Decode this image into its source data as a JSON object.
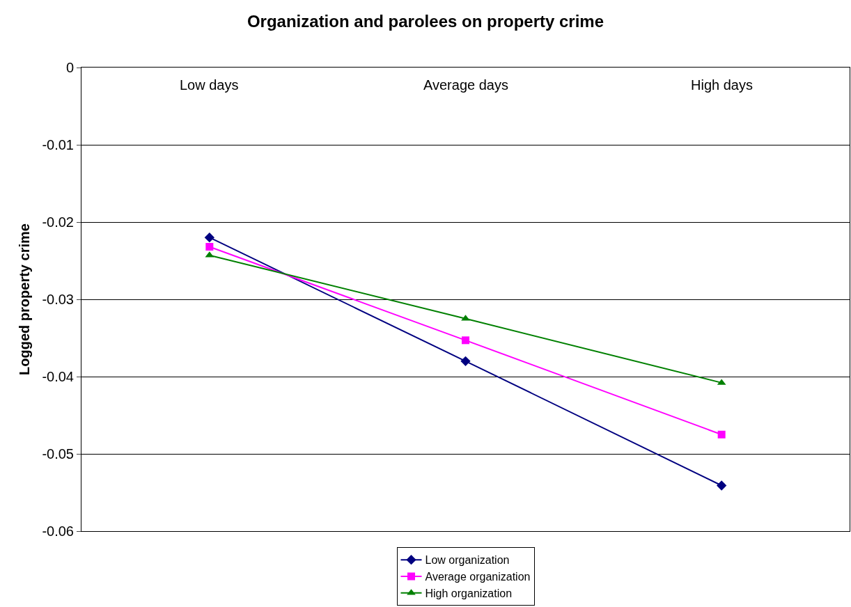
{
  "chart_data": {
    "type": "line",
    "title": "Organization and parolees on property crime",
    "ylabel": "Logged property crime",
    "categories": [
      "Low days",
      "Average days",
      "High days"
    ],
    "series": [
      {
        "name": "Low organization",
        "color": "#000080",
        "marker": "diamond",
        "values": [
          -0.022,
          -0.038,
          -0.0541
        ]
      },
      {
        "name": "Average organization",
        "color": "#ff00ff",
        "marker": "square",
        "values": [
          -0.0232,
          -0.0353,
          -0.0475
        ]
      },
      {
        "name": "High organization",
        "color": "#008000",
        "marker": "triangle",
        "values": [
          -0.0243,
          -0.0325,
          -0.0408
        ]
      }
    ],
    "ylim": [
      -0.06,
      0
    ],
    "yticks": [
      -0.06,
      -0.05,
      -0.04,
      -0.03,
      -0.02,
      -0.01,
      0
    ],
    "grid": "y",
    "legend": "bottom",
    "line_style": "solid"
  }
}
